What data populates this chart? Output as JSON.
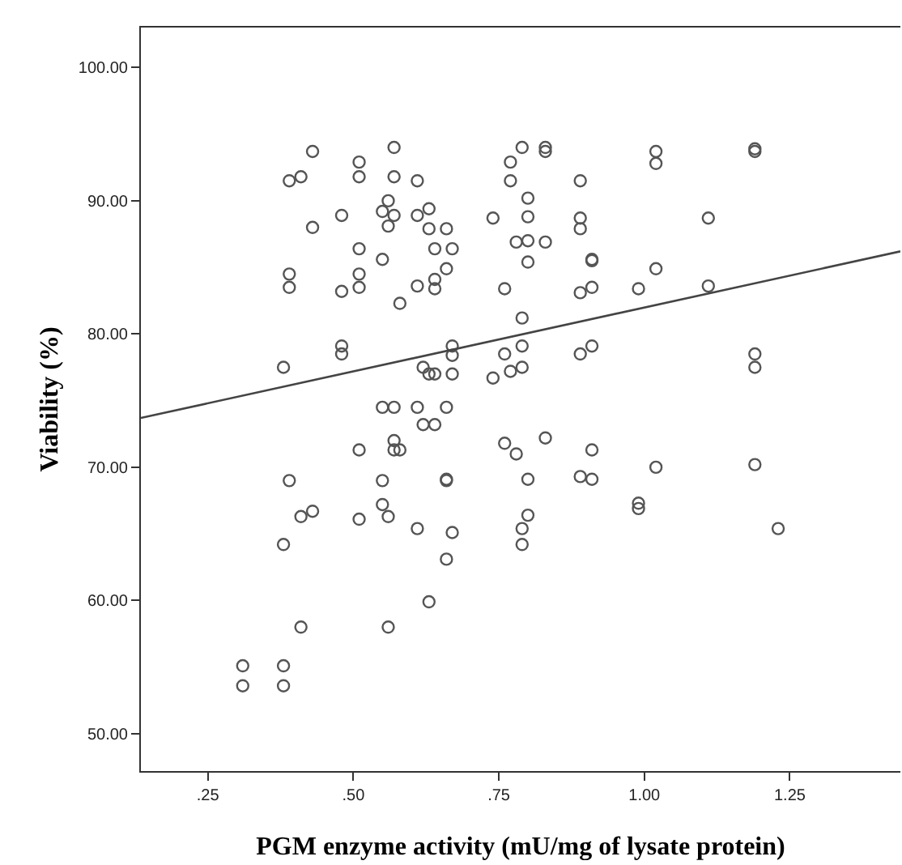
{
  "chart_data": {
    "type": "scatter",
    "xlabel": "PGM enzyme activity (mU/mg of lysate protein)",
    "ylabel": "Viability (%)",
    "xlim": [
      0.135,
      1.44
    ],
    "ylim": [
      47.2,
      103
    ],
    "xticks": [
      {
        "value": 0.25,
        "label": ".25"
      },
      {
        "value": 0.5,
        "label": ".50"
      },
      {
        "value": 0.75,
        "label": ".75"
      },
      {
        "value": 1.0,
        "label": "1.00"
      },
      {
        "value": 1.25,
        "label": "1.25"
      }
    ],
    "yticks": [
      {
        "value": 50,
        "label": "50.00"
      },
      {
        "value": 60,
        "label": "60.00"
      },
      {
        "value": 70,
        "label": "70.00"
      },
      {
        "value": 80,
        "label": "80.00"
      },
      {
        "value": 90,
        "label": "90.00"
      },
      {
        "value": 100,
        "label": "100.00"
      }
    ],
    "marker": "circle",
    "series": [
      {
        "color": "#555555",
        "x": [
          0.43,
          0.39,
          0.41,
          0.51,
          0.51,
          0.57,
          0.57,
          0.61,
          0.48,
          0.43,
          0.55,
          0.56,
          0.57,
          0.56,
          0.61,
          0.63,
          0.63,
          0.66,
          0.51,
          0.55,
          0.64,
          0.67,
          0.66,
          0.39,
          0.39,
          0.51,
          0.51,
          0.48,
          0.61,
          0.64,
          0.64,
          0.58,
          0.74,
          0.76,
          0.77,
          0.77,
          0.48,
          0.48,
          0.38,
          0.62,
          0.63,
          0.64,
          0.67,
          0.67,
          0.67,
          0.74,
          0.76,
          0.77,
          0.55,
          0.57,
          0.61,
          0.66,
          0.79,
          0.83,
          0.83,
          0.89,
          0.8,
          0.8,
          0.89,
          0.89,
          0.78,
          0.8,
          0.83,
          0.8,
          0.91,
          0.91,
          1.02,
          1.02,
          1.19,
          1.19,
          1.11,
          1.02,
          0.89,
          0.91,
          0.99,
          1.11,
          0.79,
          0.79,
          0.79,
          0.89,
          0.91,
          1.19,
          1.19,
          0.62,
          0.64,
          0.57,
          0.57,
          0.58,
          0.51,
          0.76,
          0.78,
          0.39,
          0.55,
          0.66,
          0.55,
          0.56,
          0.43,
          0.41,
          0.51,
          0.61,
          0.67,
          0.38,
          0.66,
          0.63,
          0.41,
          0.56,
          0.31,
          0.38,
          0.31,
          0.38,
          0.83,
          0.91,
          0.8,
          0.89,
          0.91,
          1.02,
          1.19,
          0.99,
          0.99,
          0.8,
          0.79,
          0.79,
          1.23,
          0.66
        ],
        "values": [
          93.7,
          91.5,
          91.8,
          92.9,
          91.8,
          94.0,
          91.8,
          91.5,
          88.9,
          88.0,
          89.2,
          90.0,
          88.9,
          88.1,
          88.9,
          89.4,
          87.9,
          87.9,
          86.4,
          85.6,
          86.4,
          86.4,
          84.9,
          84.5,
          83.5,
          84.5,
          83.5,
          83.2,
          83.6,
          84.1,
          83.4,
          82.3,
          88.7,
          83.4,
          92.9,
          91.5,
          79.1,
          78.5,
          77.5,
          77.5,
          77.0,
          77.0,
          79.1,
          78.4,
          77.0,
          76.7,
          78.5,
          77.2,
          74.5,
          74.5,
          74.5,
          74.5,
          94.0,
          94.0,
          93.7,
          91.5,
          90.2,
          88.8,
          88.7,
          87.9,
          86.9,
          87.0,
          86.9,
          85.4,
          85.6,
          85.5,
          93.7,
          92.8,
          93.9,
          93.7,
          88.7,
          84.9,
          83.1,
          83.5,
          83.4,
          83.6,
          81.2,
          79.1,
          77.5,
          78.5,
          79.1,
          78.5,
          77.5,
          73.2,
          73.2,
          72.0,
          71.3,
          71.3,
          71.3,
          71.8,
          71.0,
          69.0,
          69.0,
          69.1,
          67.2,
          66.3,
          66.7,
          66.3,
          66.1,
          65.4,
          65.1,
          64.2,
          63.1,
          59.9,
          58.0,
          58.0,
          55.1,
          55.1,
          53.6,
          53.6,
          72.2,
          71.3,
          69.1,
          69.3,
          69.1,
          70.0,
          70.2,
          67.3,
          66.9,
          66.4,
          65.4,
          64.2,
          65.4,
          69.0
        ]
      },
      {
        "type": "line",
        "color": "#444444",
        "marker": "none",
        "line_style": "solid",
        "x": [
          0.135,
          1.44
        ],
        "values": [
          73.7,
          86.2
        ]
      }
    ]
  }
}
